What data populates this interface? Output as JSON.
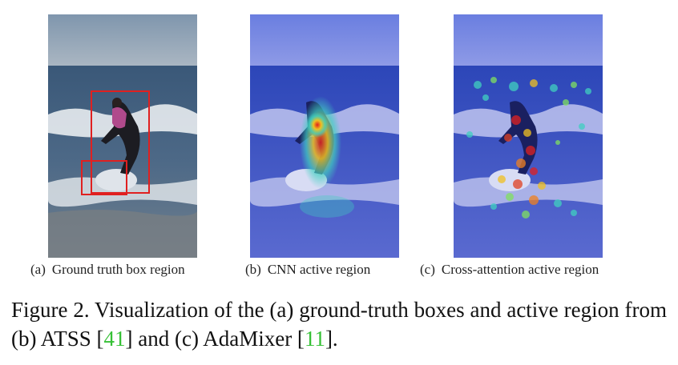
{
  "panels": [
    {
      "label": "(a)",
      "caption": "Ground truth box region",
      "overlay": "ground-truth boxes"
    },
    {
      "label": "(b)",
      "caption": "CNN active region",
      "overlay": "heatmap"
    },
    {
      "label": "(c)",
      "caption": "Cross-attention active region",
      "overlay": "sparse heatmap"
    }
  ],
  "caption": {
    "line_prefix": "Figure 2. Visualization of the (a) ground-truth boxes and active region from (b) ATSS [",
    "ref1": "41",
    "middle": "] and (c) AdaMixer [",
    "ref2": "11",
    "suffix": "]."
  },
  "colors": {
    "box": "#e02020",
    "citation": "#35c035",
    "sky": "#8a9fb3",
    "sea": "#3f5f82"
  }
}
